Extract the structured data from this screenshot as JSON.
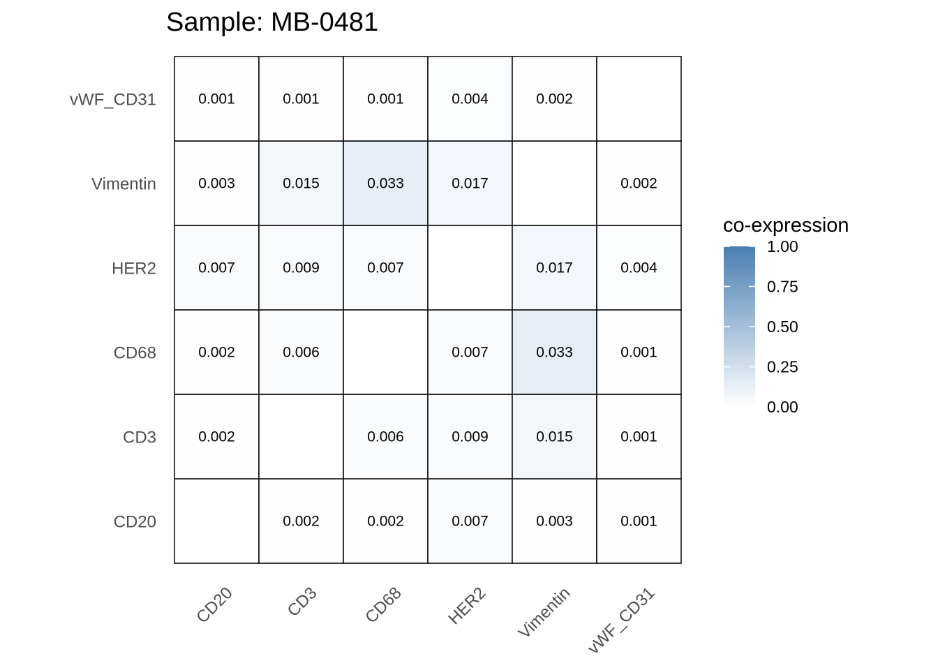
{
  "chart_data": {
    "type": "heatmap",
    "title": "Sample: MB-0481",
    "x_categories": [
      "CD20",
      "CD3",
      "CD68",
      "HER2",
      "Vimentin",
      "vWF_CD31"
    ],
    "y_categories": [
      "CD20",
      "CD3",
      "CD68",
      "HER2",
      "Vimentin",
      "vWF_CD31"
    ],
    "matrix": [
      [
        null,
        0.002,
        0.002,
        0.007,
        0.003,
        0.001
      ],
      [
        0.002,
        null,
        0.006,
        0.009,
        0.015,
        0.001
      ],
      [
        0.002,
        0.006,
        null,
        0.007,
        0.033,
        0.001
      ],
      [
        0.007,
        0.009,
        0.007,
        null,
        0.017,
        0.004
      ],
      [
        0.003,
        0.015,
        0.033,
        0.017,
        null,
        0.002
      ],
      [
        0.001,
        0.001,
        0.001,
        0.004,
        0.002,
        null
      ]
    ],
    "matrix_note_rows": "rows follow y_categories bottom-to-top order listed (CD20 first); columns follow x_categories",
    "xlabel": "",
    "ylabel": "",
    "legend": {
      "title": "co-expression",
      "position": "right",
      "ticks": [
        "1.00",
        "0.75",
        "0.50",
        "0.25",
        "0.00"
      ],
      "range": [
        0,
        1
      ],
      "color_low": "#ffffff",
      "color_high": "#4a7fb3"
    },
    "grid": false
  }
}
